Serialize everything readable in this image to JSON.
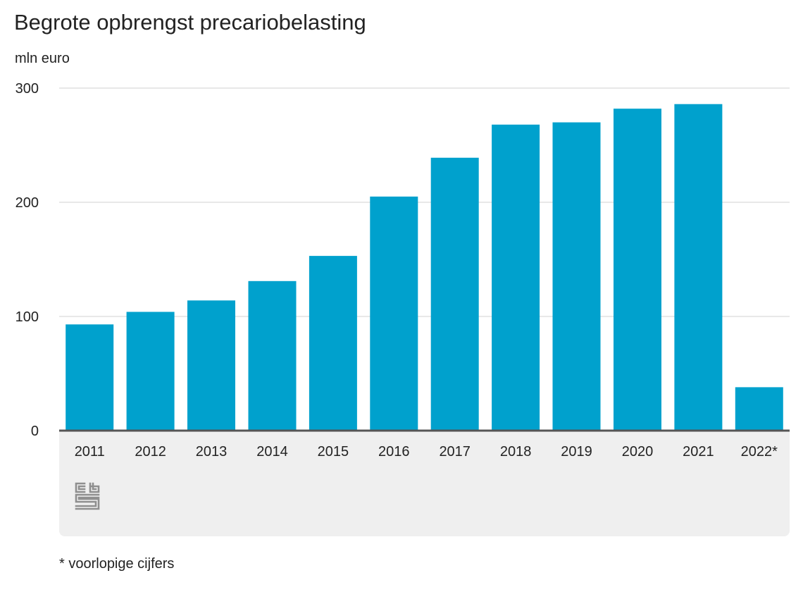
{
  "colors": {
    "bar": "#00a1cd",
    "grid": "#d0d0d0",
    "baseline": "#555555",
    "footer_panel": "#efefef",
    "logo": "#8f8f8f"
  },
  "logo": {
    "icon": "cbs-logo-icon",
    "text": "cbs"
  },
  "chart_data": {
    "type": "bar",
    "title": "Begrote opbrengst precariobelasting",
    "ylabel": "mln euro",
    "xlabel": "",
    "categories": [
      "2011",
      "2012",
      "2013",
      "2014",
      "2015",
      "2016",
      "2017",
      "2018",
      "2019",
      "2020",
      "2021",
      "2022*"
    ],
    "values": [
      93,
      104,
      114,
      131,
      153,
      205,
      239,
      268,
      270,
      282,
      286,
      38
    ],
    "ylim": [
      0,
      300
    ],
    "yticks": [
      0,
      100,
      200,
      300
    ],
    "ytick_labels": [
      "0",
      "100",
      "200",
      "300"
    ],
    "grid": true,
    "footnote": "* voorlopige cijfers"
  }
}
